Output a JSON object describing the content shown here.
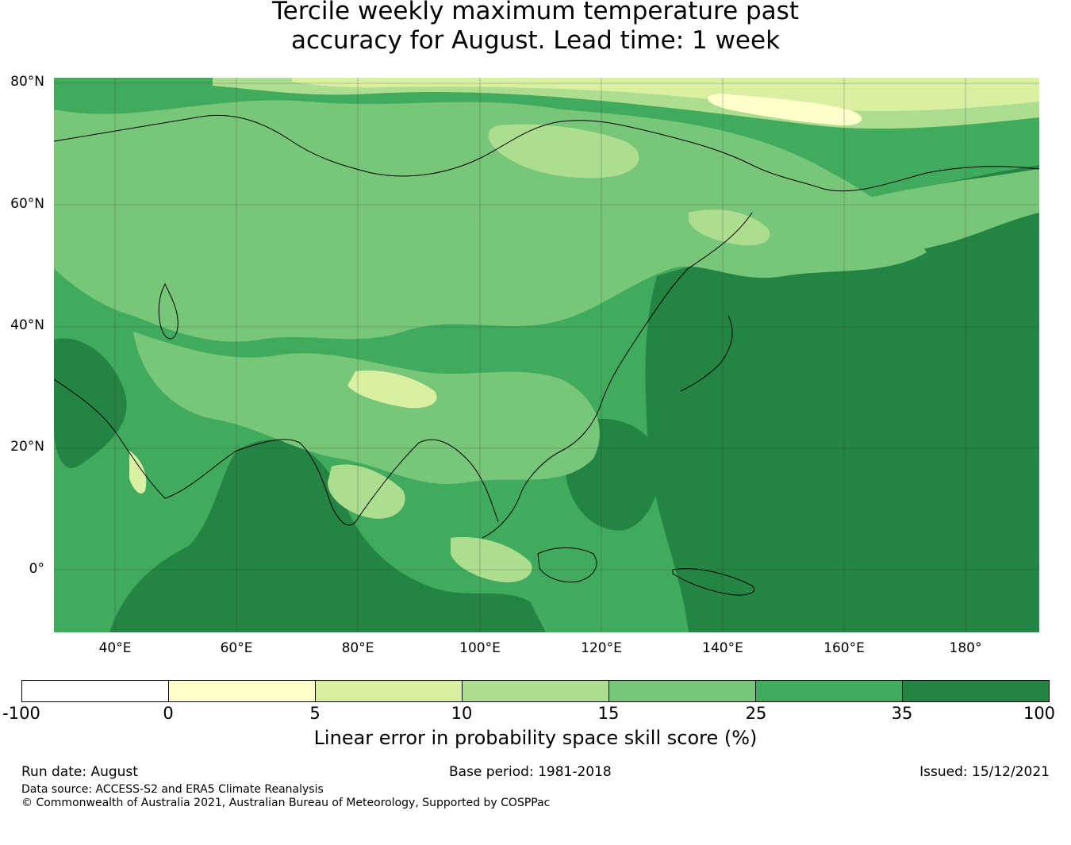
{
  "title_line1": "Tercile weekly maximum temperature past",
  "title_line2": "accuracy for August. Lead time: 1 week",
  "map": {
    "lat_labels": [
      "80°N",
      "60°N",
      "40°N",
      "20°N",
      "0°"
    ],
    "lon_labels": [
      "40°E",
      "60°E",
      "80°E",
      "100°E",
      "120°E",
      "140°E",
      "160°E",
      "180°"
    ],
    "extent": {
      "lon_min": 30,
      "lon_max": 192,
      "lat_min": -10,
      "lat_max": 81
    },
    "gridlines": true
  },
  "colorbar": {
    "ticks": [
      "-100",
      "0",
      "5",
      "10",
      "15",
      "25",
      "35",
      "100"
    ],
    "colors": [
      "#ffffff",
      "#ffffcc",
      "#d9f0a3",
      "#addd8e",
      "#78c679",
      "#41ab5d",
      "#238443"
    ],
    "label": "Linear error in probability space skill score (%)"
  },
  "footer": {
    "run_date": "Run date: August",
    "base_period": "Base period: 1981-2018",
    "issued": "Issued: 15/12/2021",
    "data_source": "Data source: ACCESS-S2 and ERA5 Climate Reanalysis",
    "copyright": "© Commonwealth of Australia 2021, Australian Bureau of Meteorology, Supported by COSPPac"
  }
}
